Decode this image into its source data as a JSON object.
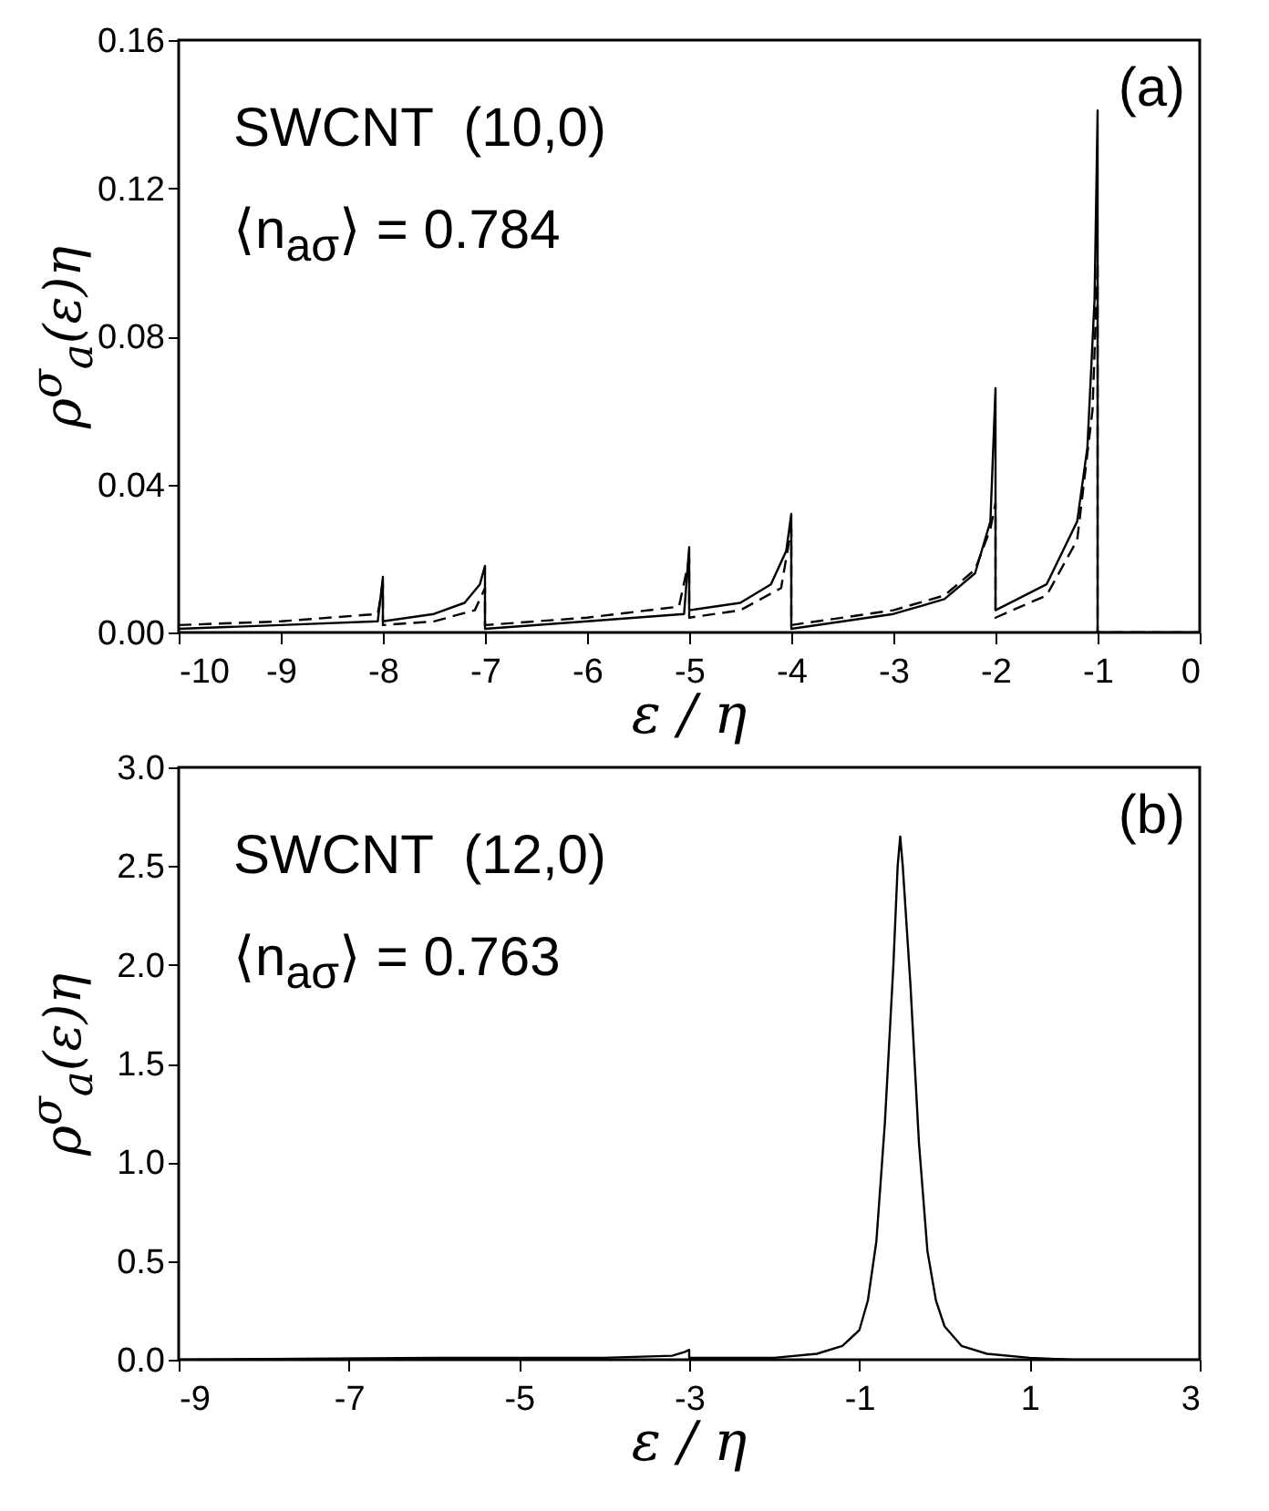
{
  "chart_data": [
    {
      "type": "line",
      "xlabel": "ε / η",
      "ylabel": "ρ$^{σ}$$_{a}$(ε)η",
      "annotations": [
        "SWCNT  (10,0)",
        "⟨n$_{aσ}$⟩ = 0.784",
        "(a)"
      ],
      "xlim": [
        -10,
        0
      ],
      "xticks": [
        -10,
        -9,
        -8,
        -7,
        -6,
        -5,
        -4,
        -3,
        -2,
        -1,
        0
      ],
      "ylim": [
        0,
        0.16
      ],
      "yticks": [
        {
          "value": 0,
          "label": "0.00"
        },
        {
          "value": 0.04,
          "label": "0.04"
        },
        {
          "value": 0.08,
          "label": "0.08"
        },
        {
          "value": 0.12,
          "label": "0.12"
        },
        {
          "value": 0.16,
          "label": "0.16"
        }
      ],
      "grid": false,
      "legend": false,
      "series": [
        {
          "color": "#000000",
          "line_style": "solid",
          "x": [
            -10,
            -9,
            -8.05,
            -8,
            -8,
            -7.5,
            -7.2,
            -7.05,
            -7,
            -7,
            -6,
            -5.05,
            -5,
            -5,
            -4.5,
            -4.2,
            -4.05,
            -4,
            -4,
            -3,
            -2.5,
            -2.2,
            -2.05,
            -2,
            -2,
            -1.5,
            -1.2,
            -1.1,
            -1.03,
            -1,
            -1,
            0
          ],
          "values": [
            0.001,
            0.002,
            0.003,
            0.015,
            0.003,
            0.005,
            0.008,
            0.013,
            0.018,
            0.001,
            0.003,
            0.005,
            0.023,
            0.006,
            0.008,
            0.013,
            0.022,
            0.032,
            0.001,
            0.005,
            0.009,
            0.016,
            0.03,
            0.066,
            0.006,
            0.013,
            0.03,
            0.05,
            0.09,
            0.141,
            0,
            0
          ]
        },
        {
          "color": "#000000",
          "line_style": "dashed",
          "x": [
            -10,
            -9,
            -8.05,
            -8,
            -8,
            -7.5,
            -7.1,
            -7,
            -7,
            -6,
            -5.1,
            -5,
            -5,
            -4.5,
            -4.1,
            -4,
            -4,
            -3,
            -2.5,
            -2.2,
            -2.05,
            -2,
            -2,
            -1.5,
            -1.2,
            -1.05,
            -1,
            -1,
            0
          ],
          "values": [
            0.002,
            0.003,
            0.005,
            0.013,
            0.002,
            0.003,
            0.006,
            0.012,
            0.002,
            0.004,
            0.007,
            0.02,
            0.004,
            0.006,
            0.012,
            0.028,
            0.002,
            0.006,
            0.01,
            0.017,
            0.028,
            0.035,
            0.004,
            0.01,
            0.025,
            0.06,
            0.1,
            0,
            0
          ]
        }
      ]
    },
    {
      "type": "line",
      "xlabel": "ε / η",
      "ylabel": "ρ$^{σ}$$_{a}$(ε)η",
      "annotations": [
        "SWCNT  (12,0)",
        "⟨n$_{aσ}$⟩ = 0.763",
        "(b)"
      ],
      "xlim": [
        -9,
        3
      ],
      "xticks": [
        -9,
        -7,
        -5,
        -3,
        -1,
        1,
        3
      ],
      "ylim": [
        0,
        3
      ],
      "yticks": [
        {
          "value": 0,
          "label": "0.0"
        },
        {
          "value": 0.5,
          "label": "0.5"
        },
        {
          "value": 1,
          "label": "1.0"
        },
        {
          "value": 1.5,
          "label": "1.5"
        },
        {
          "value": 2,
          "label": "2.0"
        },
        {
          "value": 2.5,
          "label": "2.5"
        },
        {
          "value": 3,
          "label": "3.0"
        }
      ],
      "grid": false,
      "legend": false,
      "series": [
        {
          "color": "#000000",
          "line_style": "solid",
          "x": [
            -9,
            -6,
            -4,
            -3.2,
            -3.05,
            -3,
            -3,
            -2,
            -1.5,
            -1.2,
            -1,
            -0.9,
            -0.8,
            -0.7,
            -0.6,
            -0.55,
            -0.52,
            -0.49,
            -0.4,
            -0.3,
            -0.2,
            -0.1,
            0,
            0.2,
            0.5,
            1,
            1.5,
            3
          ],
          "values": [
            0,
            0.01,
            0.01,
            0.02,
            0.04,
            0.05,
            0.01,
            0.01,
            0.03,
            0.07,
            0.15,
            0.3,
            0.6,
            1.2,
            2.0,
            2.5,
            2.65,
            2.5,
            1.9,
            1.1,
            0.55,
            0.3,
            0.17,
            0.07,
            0.03,
            0.01,
            0,
            0
          ]
        }
      ]
    }
  ]
}
